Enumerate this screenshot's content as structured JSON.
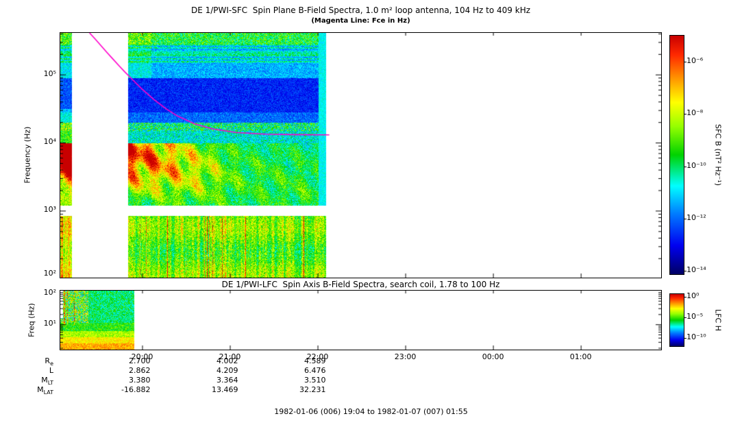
{
  "page": {
    "caption": "1982-01-06 (006) 19:04 to 1982-01-07 (007) 01:55",
    "background": "#ffffff"
  },
  "time_axis": {
    "start": "19:04",
    "end": "01:55",
    "total_min": 411,
    "ticks": [
      {
        "t_min": 56,
        "label": "20:00"
      },
      {
        "t_min": 116,
        "label": "21:00"
      },
      {
        "t_min": 176,
        "label": "22:00"
      },
      {
        "t_min": 236,
        "label": "23:00"
      },
      {
        "t_min": 296,
        "label": "00:00"
      },
      {
        "t_min": 356,
        "label": "01:00"
      }
    ]
  },
  "ephemeris": {
    "rows": [
      {
        "label_main": "R",
        "label_sub": "e",
        "values": [
          "2.700",
          "4.002",
          "4.589"
        ]
      },
      {
        "label_main": "L",
        "label_sub": "",
        "values": [
          "2.862",
          "4.209",
          "6.476"
        ]
      },
      {
        "label_main": "M",
        "label_sub": "LT",
        "values": [
          "3.380",
          "3.364",
          "3.510"
        ]
      },
      {
        "label_main": "M",
        "label_sub": "LAT",
        "values": [
          "-16.882",
          "13.469",
          "32.231"
        ]
      }
    ]
  },
  "chart_data": [
    {
      "type": "heatmap",
      "instrument": "SFC",
      "title": "DE 1/PWI-SFC  Spin Plane B-Field Spectra, 1.0 m² loop antenna, 104 Hz to 409 kHz",
      "subtitle": "(Magenta Line: Fce in Hz)",
      "ylabel": "Frequency (Hz)",
      "freq_range_hz": [
        104,
        409000
      ],
      "y_ticks": [
        {
          "logf": 5,
          "label": "10⁵"
        },
        {
          "logf": 4,
          "label": "10⁴"
        },
        {
          "logf": 3,
          "label": "10³"
        },
        {
          "logf": 2,
          "label": "10²"
        }
      ],
      "colorbar": {
        "label": "SFC B (nT² Hz⁻¹)",
        "top_exp": -5,
        "bottom_exp": -14.12,
        "ticks": [
          {
            "exp": -6,
            "label": "10⁻⁶"
          },
          {
            "exp": -8,
            "label": "10⁻⁸"
          },
          {
            "exp": -10,
            "label": "10⁻¹⁰"
          },
          {
            "exp": -12,
            "label": "10⁻¹²"
          },
          {
            "exp": -14,
            "label": "10⁻¹⁴"
          }
        ]
      },
      "colormap": [
        [
          0.0,
          "#000064"
        ],
        [
          0.12,
          "#0000f0"
        ],
        [
          0.25,
          "#0078ff"
        ],
        [
          0.37,
          "#00ffff"
        ],
        [
          0.5,
          "#00d200"
        ],
        [
          0.62,
          "#96ff00"
        ],
        [
          0.72,
          "#ffff00"
        ],
        [
          0.82,
          "#ff9600"
        ],
        [
          0.92,
          "#ff2800"
        ],
        [
          1.0,
          "#c80000"
        ]
      ],
      "coverage_min": [
        [
          0,
          7.5
        ],
        [
          46,
          181.5
        ]
      ],
      "gap_band_logf": [
        2.93,
        3.08
      ],
      "bands": [
        {
          "logf": [
            5.45,
            5.62
          ],
          "base": 0.5,
          "noise": 0.16
        },
        {
          "logf": [
            5.15,
            5.45
          ],
          "base": 0.36,
          "noise": 0.1,
          "stripes": true
        },
        {
          "logf": [
            4.95,
            5.15
          ],
          "base": 0.3,
          "noise": 0.08
        },
        {
          "logf": [
            4.45,
            4.95
          ],
          "base": 0.16,
          "noise": 0.07
        },
        {
          "logf": [
            4.3,
            4.45
          ],
          "base": 0.23,
          "noise": 0.08
        },
        {
          "logf": [
            4.18,
            4.3
          ],
          "base": 0.44,
          "noise": 0.2
        },
        {
          "logf": [
            4.0,
            4.18
          ],
          "base": 0.38,
          "noise": 0.12
        },
        {
          "logf": [
            3.08,
            4.0
          ],
          "base": 0.42,
          "noise": 0.12,
          "funnel": true
        },
        {
          "logf": [
            2.0,
            2.93
          ],
          "base": 0.58,
          "noise": 0.13,
          "striation": true
        }
      ],
      "fce_line": {
        "name": "Fce",
        "color": "#ff00cc",
        "points_min_hz": [
          [
            20,
            409000
          ],
          [
            24,
            330000
          ],
          [
            28,
            263000
          ],
          [
            32,
            210000
          ],
          [
            36,
            169000
          ],
          [
            40,
            136000
          ],
          [
            44,
            110000
          ],
          [
            48,
            90000
          ],
          [
            56,
            61000
          ],
          [
            64,
            43000
          ],
          [
            72,
            31800
          ],
          [
            80,
            24700
          ],
          [
            92,
            18800
          ],
          [
            104,
            15900
          ],
          [
            120,
            14100
          ],
          [
            140,
            13300
          ],
          [
            160,
            13100
          ],
          [
            184,
            13000
          ]
        ]
      }
    },
    {
      "type": "heatmap",
      "instrument": "LFC",
      "title": "DE 1/PWI-LFC  Spin Axis B-Field Spectra, search coil, 1.78 to 100 Hz",
      "ylabel": "Freq (Hz)",
      "freq_range_hz": [
        1.78,
        100
      ],
      "y_ticks": [
        {
          "logf": 2,
          "label": "10²"
        },
        {
          "logf": 1,
          "label": "10¹"
        }
      ],
      "colorbar": {
        "label": "LFC H",
        "top_exp": 0.7,
        "bottom_exp": -12,
        "ticks": [
          {
            "exp": 0,
            "label": "10⁰"
          },
          {
            "exp": -5,
            "label": "10⁻⁵"
          },
          {
            "exp": -10,
            "label": "10⁻¹⁰"
          }
        ]
      },
      "coverage_min": [
        [
          0,
          50.5
        ]
      ],
      "bands": [
        {
          "logf": [
            1.05,
            2.01
          ],
          "base": 0.45,
          "noise": 0.12,
          "speckle_until_min": 19,
          "speckle_base": 0.55,
          "speckle_noise": 0.28
        },
        {
          "logf": [
            0.82,
            1.05
          ],
          "base": 0.52,
          "noise": 0.1
        },
        {
          "logf": [
            0.62,
            0.82
          ],
          "base": 0.64,
          "noise": 0.08
        },
        {
          "logf": [
            0.44,
            0.62
          ],
          "base": 0.73,
          "noise": 0.07
        },
        {
          "logf": [
            0.25,
            0.44
          ],
          "base": 0.8,
          "noise": 0.07
        }
      ]
    }
  ]
}
